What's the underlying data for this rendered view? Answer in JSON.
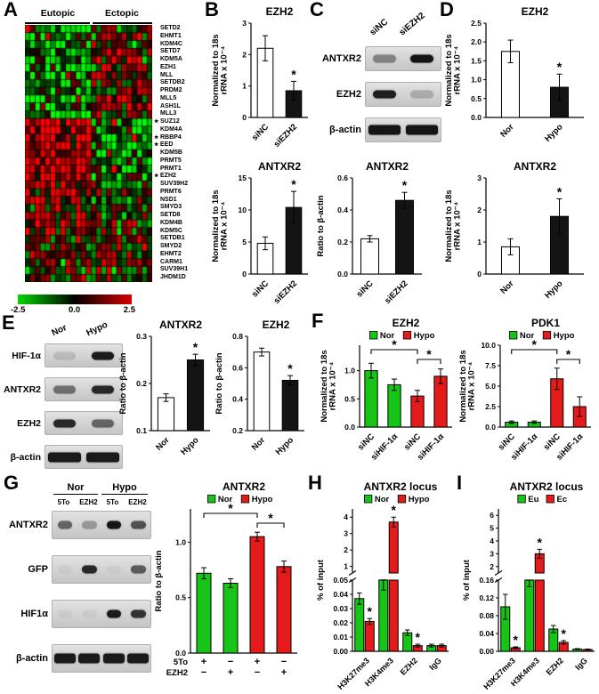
{
  "style": {
    "colors": {
      "green": "#17c517",
      "red": "#e51a1a",
      "white": "#ffffff",
      "black": "#141414"
    }
  },
  "panels": {
    "A": {
      "letter": "A",
      "col_headers": [
        "Eutopic",
        "Ectopic"
      ],
      "genes": [
        "SETD2",
        "EHMT1",
        "KDM4C",
        "SETD7",
        "KDM5A",
        "EZH1",
        "MLL",
        "SETDB2",
        "PRDM2",
        "MLL5",
        "ASH1L",
        "MLL3",
        "SUZ12",
        "KDM4A",
        "RBBP4",
        "EED",
        "KDM5B",
        "PRMT5",
        "PRMT1",
        "EZH2",
        "SUV39H2",
        "PRMT6",
        "NSD1",
        "SMYD3",
        "SETD8",
        "KDM4B",
        "KDM5C",
        "SETDB1",
        "SMYD2",
        "EHMT2",
        "CARM1",
        "SUV39H1",
        "JHDM1D"
      ],
      "starred": [
        "SUZ12",
        "RBBP4",
        "EED",
        "EZH2"
      ],
      "heatmap": {
        "cols_eutopic": 13,
        "cols_ectopic": 12,
        "rows": 33,
        "seed": 7,
        "blocks": [
          {
            "from": 0,
            "to": 11,
            "eu": -0.5,
            "ec": 0.3
          },
          {
            "from": 12,
            "to": 19,
            "eu": 0.75,
            "ec": -0.5
          },
          {
            "from": 20,
            "to": 26,
            "eu": 0.45,
            "ec": -0.05
          },
          {
            "from": 27,
            "to": 32,
            "eu": 0.2,
            "ec": 0.15
          }
        ]
      },
      "scale": {
        "labels": [
          "-2.5",
          "0.0",
          "2.5"
        ],
        "gradient": [
          "#00d800",
          "#000000",
          "#d80000"
        ]
      }
    },
    "B": {
      "letter": "B"
    },
    "C": {
      "letter": "C"
    },
    "D": {
      "letter": "D"
    },
    "E": {
      "letter": "E"
    },
    "F": {
      "letter": "F"
    },
    "G": {
      "letter": "G"
    },
    "H": {
      "letter": "H"
    },
    "I": {
      "letter": "I"
    }
  },
  "blots": {
    "c": {
      "lane_labels": [
        "siNC",
        "siEZH2"
      ],
      "rows": [
        {
          "label": "ANTXR2",
          "bands": [
            0.4,
            0.95
          ]
        },
        {
          "label": "EZH2",
          "bands": [
            0.9,
            0.2
          ]
        },
        {
          "label": "β-actin",
          "bands": [
            0.95,
            0.95
          ],
          "wide": true
        }
      ]
    },
    "e": {
      "lane_labels": [
        "Nor",
        "Hypo"
      ],
      "rows": [
        {
          "label": "HIF-1α",
          "bands": [
            0.12,
            0.92
          ]
        },
        {
          "label": "ANTXR2",
          "bands": [
            0.5,
            0.85
          ]
        },
        {
          "label": "EZH2",
          "bands": [
            0.85,
            0.55
          ]
        },
        {
          "label": "β-actin",
          "bands": [
            0.92,
            0.92
          ],
          "wide": true
        }
      ]
    },
    "g": {
      "group_labels": [
        "Nor",
        "Hypo"
      ],
      "lane_labels": [
        "5To",
        "EZH2",
        "5To",
        "EZH2"
      ],
      "rows": [
        {
          "label": "ANTXR2",
          "bands": [
            0.55,
            0.3,
            0.95,
            0.65
          ]
        },
        {
          "label": "GFP",
          "bands": [
            0.04,
            0.85,
            0.04,
            0.6
          ]
        },
        {
          "label": "HIF1α",
          "bands": [
            0.04,
            0.04,
            0.92,
            0.8
          ]
        },
        {
          "label": "β-actin",
          "bands": [
            0.92,
            0.92,
            0.92,
            0.92
          ],
          "wide": true
        }
      ]
    }
  },
  "chart_data": {
    "b_ezh2": {
      "type": "bar",
      "title": "EZH2",
      "ylabel": [
        "Normalized to 18s",
        "rRNA x 10⁻⁴"
      ],
      "yticks": [
        0,
        1,
        2,
        3
      ],
      "ytick_labels": [
        "0",
        "1",
        "2",
        "3"
      ],
      "ymax": 3,
      "x_rot": true,
      "bars": [
        {
          "label": "siNC",
          "value": 2.2,
          "err": 0.4,
          "color": "white"
        },
        {
          "label": "siEZH2",
          "value": 0.85,
          "err": 0.3,
          "color": "black",
          "sig": true
        }
      ]
    },
    "b_antxr2": {
      "type": "bar",
      "title": "ANTXR2",
      "ylabel": [
        "Normalized to 18s",
        "rRNA x 10⁻⁴"
      ],
      "yticks": [
        0,
        5,
        10,
        15
      ],
      "ytick_labels": [
        "0",
        "5",
        "10",
        "15"
      ],
      "ymax": 15,
      "x_rot": true,
      "bars": [
        {
          "label": "siNC",
          "value": 4.8,
          "err": 1.0,
          "color": "white"
        },
        {
          "label": "siEZH2",
          "value": 10.4,
          "err": 2.5,
          "color": "black",
          "sig": true
        }
      ]
    },
    "c_antxr2": {
      "type": "bar",
      "title": "ANTXR2",
      "ylabel": [
        "Ratio to β-actin"
      ],
      "yticks": [
        0,
        0.2,
        0.4,
        0.6
      ],
      "ytick_labels": [
        "0.0",
        "0.2",
        "0.4",
        "0.6"
      ],
      "ymax": 0.6,
      "x_rot": true,
      "bars": [
        {
          "label": "siNC",
          "value": 0.22,
          "err": 0.02,
          "color": "white"
        },
        {
          "label": "siEZH2",
          "value": 0.46,
          "err": 0.05,
          "color": "black",
          "sig": true
        }
      ]
    },
    "d_ezh2": {
      "type": "bar",
      "title": "EZH2",
      "ylabel": [
        "Normalized to 18s",
        "rRNA x 10⁻⁴"
      ],
      "yticks": [
        0,
        0.5,
        1,
        1.5,
        2,
        2.5
      ],
      "ytick_labels": [
        "0.0",
        "0.5",
        "1.0",
        "1.5",
        "2.0",
        "2.5"
      ],
      "ymax": 2.5,
      "x_rot": true,
      "bars": [
        {
          "label": "Nor",
          "value": 1.75,
          "err": 0.3,
          "color": "white"
        },
        {
          "label": "Hypo",
          "value": 0.8,
          "err": 0.35,
          "color": "black",
          "sig": true
        }
      ]
    },
    "d_antxr2": {
      "type": "bar",
      "title": "ANTXR2",
      "ylabel": [
        "Normalized to 18s",
        "rRNA x 10⁻⁴"
      ],
      "yticks": [
        0,
        1,
        2,
        3
      ],
      "ytick_labels": [
        "0",
        "1",
        "2",
        "3"
      ],
      "ymax": 3,
      "x_rot": true,
      "bars": [
        {
          "label": "Nor",
          "value": 0.85,
          "err": 0.25,
          "color": "white"
        },
        {
          "label": "Hypo",
          "value": 1.8,
          "err": 0.55,
          "color": "black",
          "sig": true
        }
      ]
    },
    "e_antxr2": {
      "type": "bar",
      "title": "ANTXR2",
      "ylabel": [
        "Ratio to β-actin"
      ],
      "ymin": 0.1,
      "yticks": [
        0.1,
        0.2,
        0.3
      ],
      "ytick_labels": [
        "0.1",
        "0.2",
        "0.3"
      ],
      "ymax": 0.3,
      "x_rot": true,
      "bars": [
        {
          "label": "Nor",
          "value": 0.17,
          "err": 0.008,
          "color": "white"
        },
        {
          "label": "Hypo",
          "value": 0.25,
          "err": 0.012,
          "color": "black",
          "sig": true
        }
      ]
    },
    "e_ezh2": {
      "type": "bar",
      "title": "EZH2",
      "ylabel": [
        "Ratio to β-actin"
      ],
      "ymin": 0.2,
      "yticks": [
        0.2,
        0.4,
        0.6,
        0.8
      ],
      "ytick_labels": [
        "0.2",
        "0.4",
        "0.6",
        "0.8"
      ],
      "ymax": 0.8,
      "x_rot": true,
      "bars": [
        {
          "label": "Nor",
          "value": 0.7,
          "err": 0.025,
          "color": "white"
        },
        {
          "label": "Hypo",
          "value": 0.52,
          "err": 0.03,
          "color": "black",
          "sig": true
        }
      ]
    },
    "f_ezh2": {
      "type": "bar",
      "title": "EZH2",
      "legend": [
        {
          "label": "Nor",
          "color": "green"
        },
        {
          "label": "Hypo",
          "color": "red"
        }
      ],
      "ylabel": [
        "Normalized to 18s",
        "rRNA x 10⁻⁴"
      ],
      "yticks": [
        0,
        0.5,
        1
      ],
      "ytick_labels": [
        "0.0",
        "0.5",
        "1.0"
      ],
      "ymax": 1.45,
      "x_rot": true,
      "bars": [
        {
          "label": "siNC",
          "value": 1.0,
          "err": 0.13,
          "color": "green"
        },
        {
          "label": "siHIF-1α",
          "value": 0.75,
          "err": 0.1,
          "color": "green"
        },
        {
          "label": "siNC",
          "value": 0.55,
          "err": 0.1,
          "color": "red"
        },
        {
          "label": "siHIF-1α",
          "value": 0.9,
          "err": 0.13,
          "color": "red"
        }
      ],
      "brackets": [
        {
          "a": 0,
          "b": 2,
          "lvl": 0
        },
        {
          "a": 2,
          "b": 3,
          "lvl": 1
        }
      ]
    },
    "f_pdk1": {
      "type": "bar",
      "title": "PDK1",
      "legend": [
        {
          "label": "Nor",
          "color": "green"
        },
        {
          "label": "Hypo",
          "color": "red"
        }
      ],
      "ylabel": [
        "Normalized to 18s",
        "rRNA x 10⁻⁴"
      ],
      "yticks": [
        0,
        2.5,
        5,
        7.5,
        10
      ],
      "ytick_labels": [
        "0.0",
        "2.5",
        "5.0",
        "7.5",
        "10.0"
      ],
      "ymax": 10,
      "x_rot": true,
      "bars": [
        {
          "label": "siNC",
          "value": 0.6,
          "err": 0.15,
          "color": "green"
        },
        {
          "label": "siHIF-1α",
          "value": 0.6,
          "err": 0.15,
          "color": "green"
        },
        {
          "label": "siNC",
          "value": 5.9,
          "err": 1.3,
          "color": "red"
        },
        {
          "label": "siHIF-1α",
          "value": 2.5,
          "err": 1.2,
          "color": "red"
        }
      ],
      "brackets": [
        {
          "a": 0,
          "b": 2,
          "lvl": 0
        },
        {
          "a": 2,
          "b": 3,
          "lvl": 1
        }
      ]
    },
    "g_antxr2": {
      "type": "bar",
      "title": "ANTXR2",
      "legend": [
        {
          "label": "Nor",
          "color": "green"
        },
        {
          "label": "Hypo",
          "color": "red"
        }
      ],
      "ylabel": [
        "Ratio to β-actin"
      ],
      "yticks": [
        0,
        0.5,
        1
      ],
      "ytick_labels": [
        "0.0",
        "0.5",
        "1.0"
      ],
      "ymax": 1.3,
      "barw": 16,
      "bars": [
        {
          "value": 0.72,
          "err": 0.05,
          "color": "green"
        },
        {
          "value": 0.63,
          "err": 0.04,
          "color": "green"
        },
        {
          "value": 1.05,
          "err": 0.04,
          "color": "red"
        },
        {
          "value": 0.78,
          "err": 0.05,
          "color": "red"
        }
      ],
      "brackets": [
        {
          "a": 0,
          "b": 2,
          "lvl": 0
        },
        {
          "a": 2,
          "b": 3,
          "lvl": 1
        }
      ],
      "x_matrix": [
        {
          "label": "5To",
          "vals": [
            "+",
            "−",
            "+",
            "−"
          ]
        },
        {
          "label": "EZH2",
          "vals": [
            "−",
            "+",
            "−",
            "+"
          ]
        }
      ]
    },
    "h_locus": {
      "type": "bar",
      "title": "ANTXR2 locus",
      "legend": [
        {
          "label": "Nor",
          "color": "green"
        },
        {
          "label": "Hypo",
          "color": "red"
        }
      ],
      "ylabel": [
        "% of input"
      ],
      "categories": [
        "H3K27me3",
        "H3K4me3",
        "EZH2",
        "IgG"
      ],
      "series": [
        {
          "name": "Nor",
          "color": "green",
          "values": [
            0.037,
            0.055,
            0.013,
            0.004
          ],
          "errs": [
            0.004,
            0.012,
            0.002,
            0.001
          ],
          "sig": [
            false,
            false,
            false,
            false
          ]
        },
        {
          "name": "Hypo",
          "color": "red",
          "values": [
            0.021,
            3.7,
            0.004,
            0.004
          ],
          "errs": [
            0.002,
            0.3,
            0.001,
            0.001
          ],
          "sig": [
            true,
            true,
            true,
            false
          ]
        }
      ],
      "broken": {
        "lower": {
          "max": 0.05,
          "ticks": [
            0,
            0.01,
            0.02,
            0.03,
            0.04,
            0.05
          ],
          "labels": [
            "0.00",
            "0.01",
            "0.02",
            "0.03",
            "0.04",
            "0.05"
          ]
        },
        "upper": {
          "min": 0.6,
          "max": 4.5,
          "ticks": [
            1,
            2,
            3,
            4
          ],
          "labels": [
            "1",
            "2",
            "3",
            "4"
          ]
        }
      }
    },
    "i_locus": {
      "type": "bar",
      "title": "ANTXR2 locus",
      "legend": [
        {
          "label": "Eu",
          "color": "green"
        },
        {
          "label": "Ec",
          "color": "red"
        }
      ],
      "ylabel": [
        "% of input"
      ],
      "categories": [
        "H3K27me3",
        "H3K4me3",
        "EZH2",
        "IgG"
      ],
      "series": [
        {
          "name": "Eu",
          "color": "green",
          "values": [
            0.1,
            0.165,
            0.05,
            0.005
          ],
          "errs": [
            0.028,
            0.02,
            0.008,
            0.001
          ],
          "sig": [
            false,
            false,
            false,
            false
          ]
        },
        {
          "name": "Ec",
          "color": "red",
          "values": [
            0.008,
            3.0,
            0.02,
            0.004
          ],
          "errs": [
            0.002,
            0.35,
            0.004,
            0.001
          ],
          "sig": [
            true,
            true,
            true,
            false
          ]
        }
      ],
      "broken": {
        "lower": {
          "max": 0.16,
          "ticks": [
            0,
            0.04,
            0.08,
            0.12,
            0.16
          ],
          "labels": [
            "0.00",
            "0.04",
            "0.08",
            "0.12",
            "0.16"
          ]
        },
        "upper": {
          "min": 1.5,
          "max": 6.5,
          "ticks": [
            2,
            3,
            4,
            5,
            6
          ],
          "labels": [
            "2",
            "3",
            "4",
            "5",
            "6"
          ]
        }
      }
    }
  }
}
